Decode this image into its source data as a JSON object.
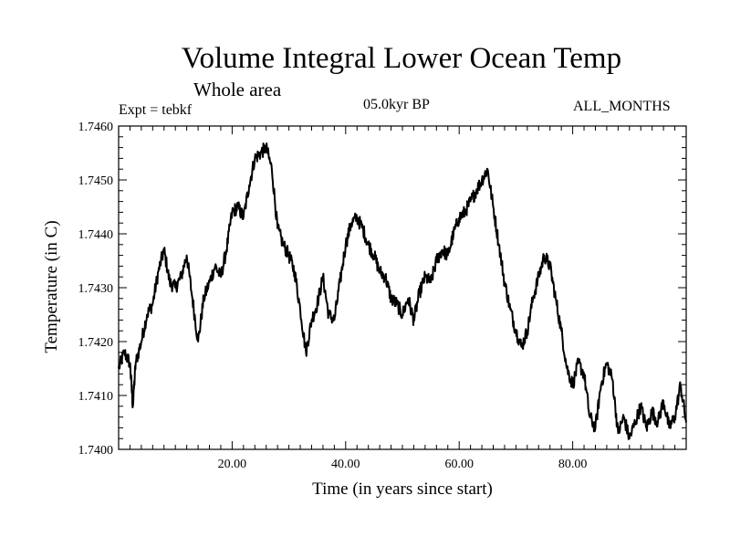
{
  "chart_data": {
    "type": "line",
    "title": "Volume Integral Lower Ocean Temp",
    "subtitle": "Whole area",
    "experiment": "Expt = tebkf",
    "period": "05.0kyr BP",
    "months": "ALL_MONTHS",
    "xlabel": "Time (in years since start)",
    "ylabel": "Temperature (in C)",
    "xlim": [
      0,
      100
    ],
    "ylim": [
      1.74,
      1.746
    ],
    "x_ticks": [
      20,
      40,
      60,
      80
    ],
    "x_tick_labels": [
      "20.00",
      "40.00",
      "60.00",
      "80.00"
    ],
    "y_ticks": [
      1.74,
      1.741,
      1.742,
      1.743,
      1.744,
      1.745,
      1.746
    ],
    "y_tick_labels": [
      "1.7400",
      "1.7410",
      "1.7420",
      "1.7430",
      "1.7440",
      "1.7450",
      "1.7460"
    ],
    "grid": false,
    "series": [
      {
        "name": "Volume Integral Lower Ocean Temp",
        "color": "#000000",
        "x": [
          0,
          1,
          2,
          2.5,
          3,
          4,
          5,
          6,
          7,
          8,
          9,
          10,
          11,
          12,
          13,
          14,
          15,
          16,
          17,
          18,
          19,
          20,
          21,
          22,
          23,
          24,
          25,
          26,
          27,
          28,
          29,
          30,
          31,
          32,
          33,
          34,
          35,
          36,
          37,
          38,
          39,
          40,
          41,
          42,
          43,
          44,
          45,
          46,
          47,
          48,
          49,
          50,
          51,
          52,
          53,
          54,
          55,
          56,
          57,
          58,
          59,
          60,
          61,
          62,
          63,
          64,
          65,
          66,
          67,
          68,
          69,
          70,
          71,
          72,
          73,
          74,
          75,
          76,
          77,
          78,
          79,
          80,
          81,
          82,
          83,
          84,
          85,
          86,
          87,
          88,
          89,
          90,
          91,
          92,
          93,
          94,
          95,
          96,
          97,
          98,
          99,
          100
        ],
        "values": [
          1.7415,
          1.7418,
          1.7416,
          1.7408,
          1.7416,
          1.742,
          1.7425,
          1.7427,
          1.7433,
          1.7437,
          1.7431,
          1.743,
          1.7432,
          1.7436,
          1.7428,
          1.742,
          1.7428,
          1.7431,
          1.7434,
          1.7432,
          1.7437,
          1.7444,
          1.7445,
          1.7443,
          1.7449,
          1.7454,
          1.7455,
          1.7456,
          1.7452,
          1.7441,
          1.7438,
          1.7436,
          1.7433,
          1.7426,
          1.7418,
          1.7424,
          1.7427,
          1.7432,
          1.7425,
          1.7424,
          1.7431,
          1.7438,
          1.7442,
          1.7443,
          1.7441,
          1.7438,
          1.7436,
          1.7433,
          1.7432,
          1.7428,
          1.7427,
          1.7425,
          1.7428,
          1.7424,
          1.7429,
          1.7432,
          1.7431,
          1.7435,
          1.7437,
          1.7436,
          1.744,
          1.7443,
          1.7444,
          1.7446,
          1.7448,
          1.745,
          1.7452,
          1.7445,
          1.7438,
          1.7431,
          1.7426,
          1.7422,
          1.7419,
          1.7422,
          1.7428,
          1.7432,
          1.7436,
          1.7434,
          1.7428,
          1.7422,
          1.7415,
          1.7412,
          1.7416,
          1.7414,
          1.7406,
          1.7404,
          1.7412,
          1.7416,
          1.7413,
          1.7403,
          1.7406,
          1.7402,
          1.7405,
          1.7408,
          1.7404,
          1.7407,
          1.7405,
          1.7409,
          1.7404,
          1.7406,
          1.7412,
          1.7405
        ]
      }
    ]
  }
}
